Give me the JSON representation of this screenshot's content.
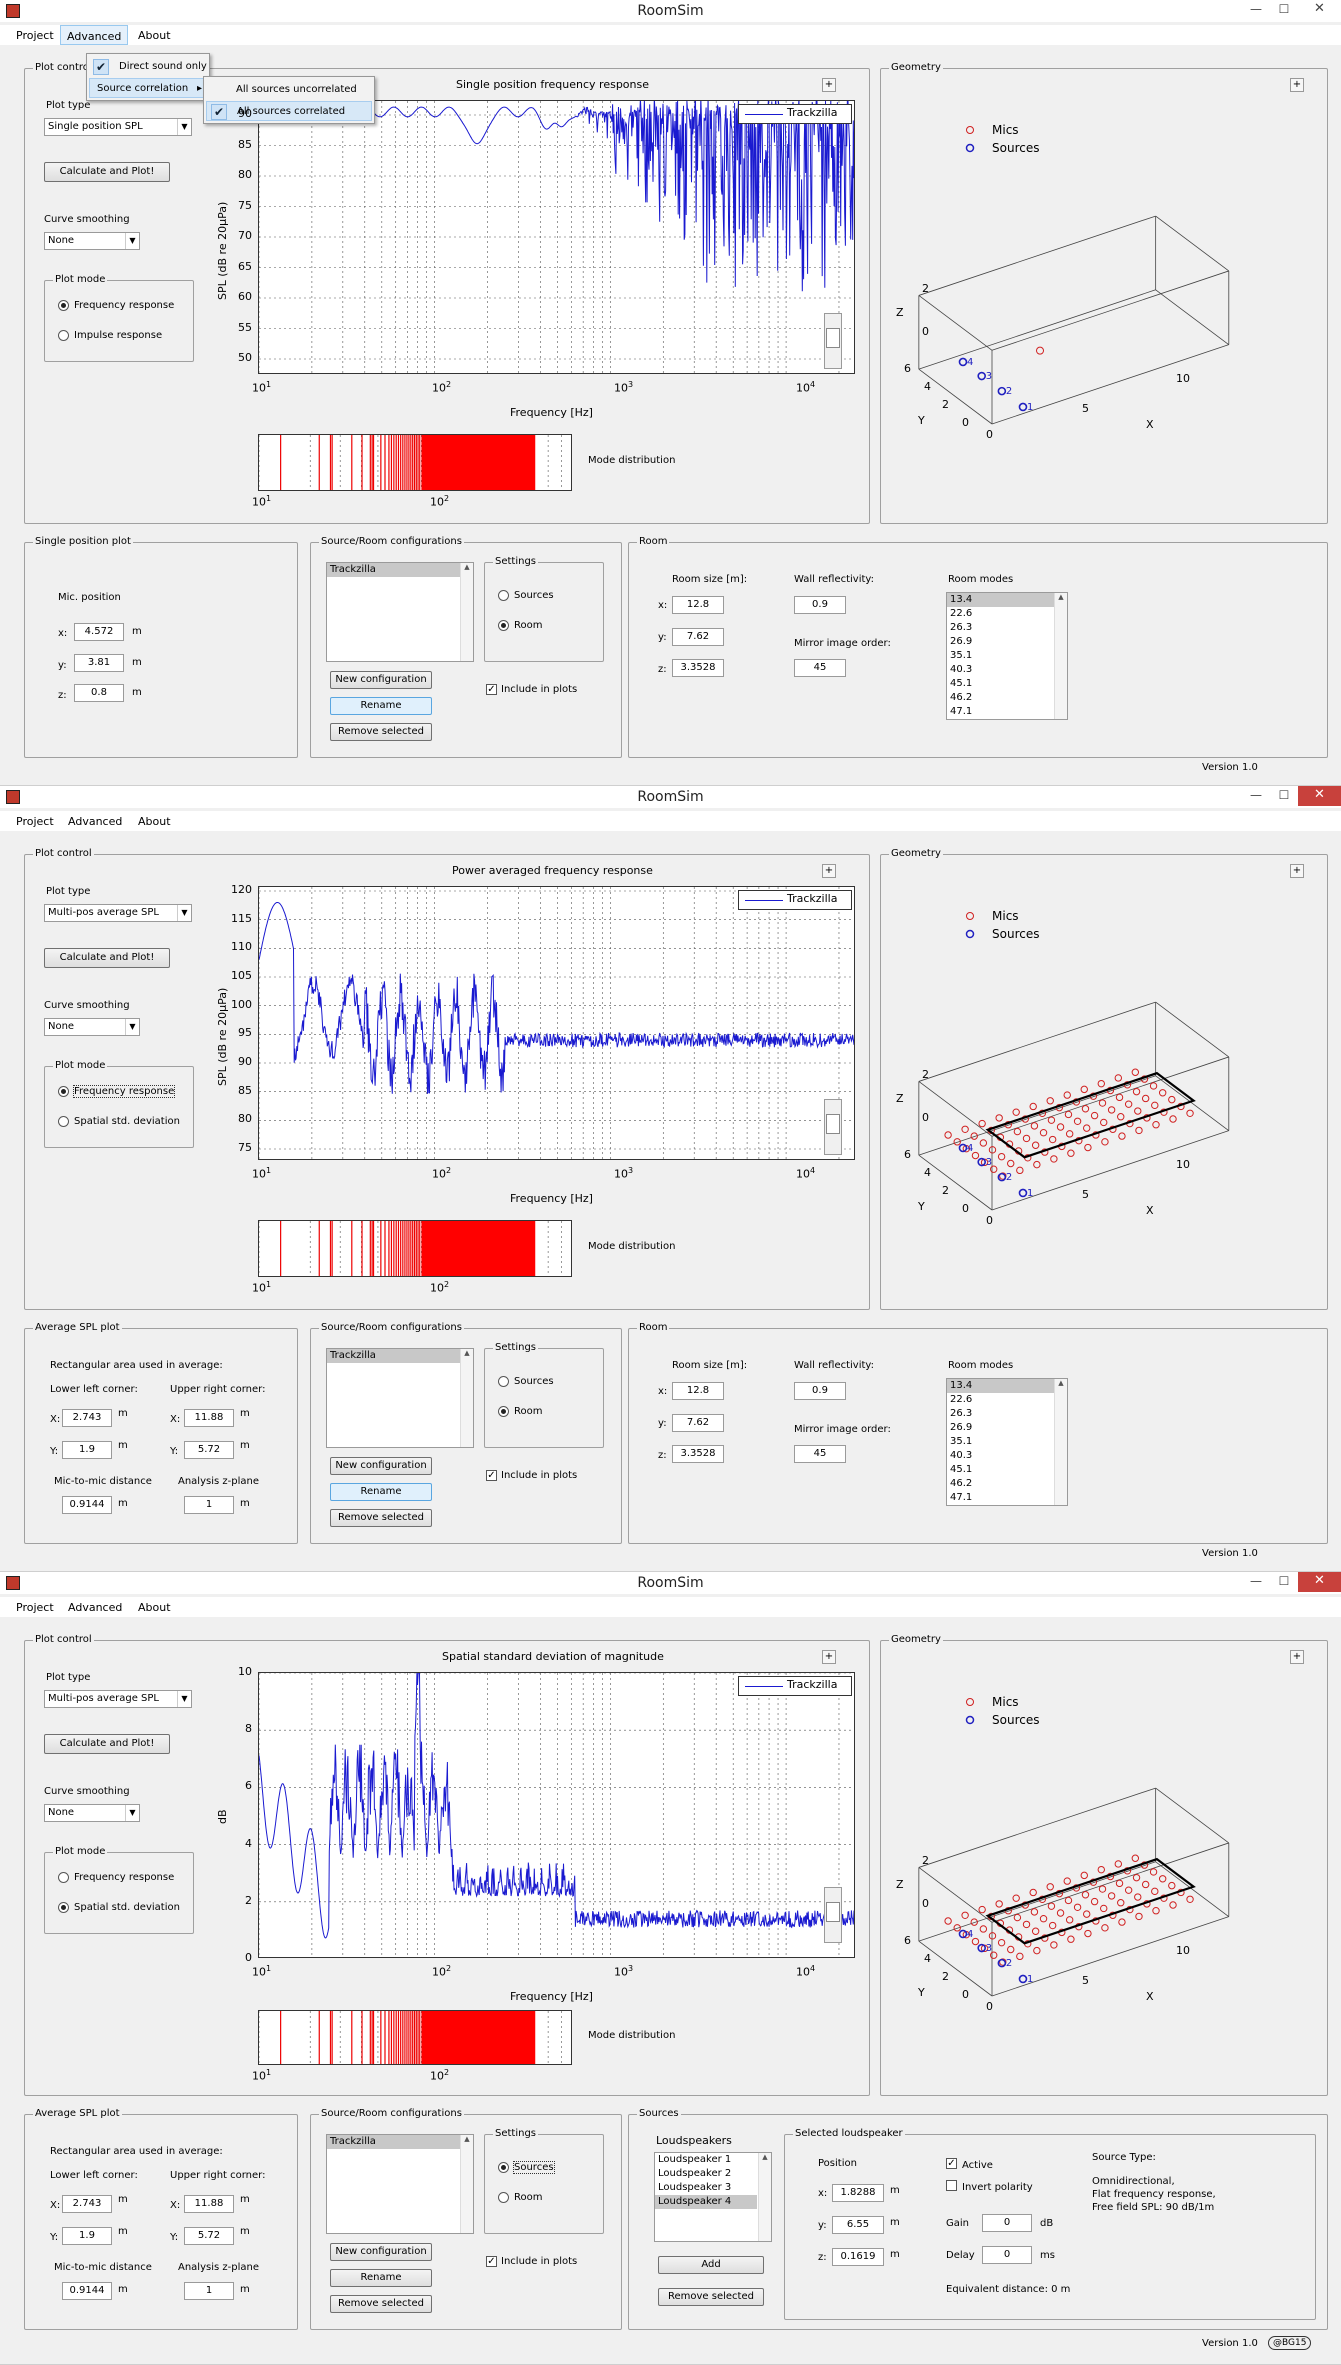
{
  "app_title": "RoomSim",
  "menu": {
    "project": "Project",
    "advanced": "Advanced",
    "about": "About"
  },
  "window_controls": {
    "minimize": "—",
    "maximize": "☐",
    "close": "✕"
  },
  "context_menu": {
    "direct_sound_only": "Direct sound only",
    "source_correlation": "Source correlation",
    "all_uncorrelated": "All sources uncorrelated",
    "all_correlated": "All sources correlated"
  },
  "common": {
    "plot_control": "Plot control",
    "plot_type": "Plot type",
    "calculate": "Calculate and Plot!",
    "curve_smoothing": "Curve smoothing",
    "smoothing_value": "None",
    "plot_mode": "Plot mode",
    "frequency_response": "Frequency response",
    "impulse_response": "Impulse response",
    "spatial_std": "Spatial std. deviation",
    "geometry": "Geometry",
    "legend_series": "Trackzilla",
    "mics": "Mics",
    "sources": "Sources",
    "x_axis": "Frequency [Hz]",
    "mode_distribution": "Mode distribution",
    "source_room_configs": "Source/Room configurations",
    "config_item": "Trackzilla",
    "settings": "Settings",
    "settings_sources": "Sources",
    "settings_room": "Room",
    "new_config": "New configuration",
    "rename": "Rename",
    "remove_selected": "Remove selected",
    "include_in_plots": "Include in plots",
    "room": "Room",
    "room_size": "Room size [m]:",
    "wall_reflectivity": "Wall reflectivity:",
    "wall_reflectivity_value": "0.9",
    "mirror_order": "Mirror image order:",
    "mirror_order_value": "45",
    "room_modes": "Room modes",
    "room_x": "12.8",
    "room_y": "7.62",
    "room_z": "3.3528",
    "version": "Version 1.0",
    "plus": "+",
    "unit_m": "m",
    "axis_x": "X",
    "axis_y": "Y",
    "axis_z": "Z",
    "x_label": "x:",
    "y_label": "y:",
    "z_label": "z:",
    "X_label": "X:",
    "Y_label": "Y:"
  },
  "room_modes": [
    "13.4",
    "22.6",
    "26.3",
    "26.9",
    "35.1",
    "40.3",
    "45.1",
    "46.2",
    "47.1"
  ],
  "geom_ticks": {
    "z0": "0",
    "z2": "2",
    "y0": "0",
    "y2": "2",
    "y4": "4",
    "y6": "6",
    "x0": "0",
    "x5": "5",
    "x10": "10",
    "src1": "1",
    "src2": "2",
    "src3": "3",
    "src4": "4"
  },
  "freq_ticks": {
    "t10": "10",
    "t100": "10",
    "t1k": "10",
    "t10k": "10",
    "e1": "1",
    "e2": "2",
    "e3": "3",
    "e4": "4"
  },
  "windows": [
    {
      "plot_type_value": "Single position SPL",
      "plot_title": "Single position frequency response",
      "y_label": "SPL (dB re 20µPa)",
      "y_ticks": [
        "90",
        "85",
        "80",
        "75",
        "70",
        "65",
        "60",
        "55",
        "50"
      ],
      "left_panel": {
        "title": "Single position plot",
        "mic_position": "Mic. position",
        "x": "4.572",
        "y": "3.81",
        "z": "0.8"
      }
    },
    {
      "plot_type_value": "Multi-pos average SPL",
      "plot_title": "Power averaged frequency response",
      "y_label": "SPL (dB re 20µPa)",
      "y_ticks": [
        "120",
        "115",
        "110",
        "105",
        "100",
        "95",
        "90",
        "85",
        "80",
        "75"
      ],
      "left_panel": {
        "title": "Average SPL plot",
        "rect_area": "Rectangular area used in average:",
        "lower_left": "Lower left corner:",
        "upper_right": "Upper right corner:",
        "ll_x": "2.743",
        "ll_y": "1.9",
        "ur_x": "11.88",
        "ur_y": "5.72",
        "mic_to_mic": "Mic-to-mic distance",
        "mic_to_mic_value": "0.9144",
        "z_plane": "Analysis z-plane",
        "z_plane_value": "1"
      }
    },
    {
      "plot_type_value": "Multi-pos average SPL",
      "plot_title": "Spatial standard deviation of magnitude",
      "y_label": "dB",
      "y_ticks": [
        "10",
        "8",
        "6",
        "4",
        "2",
        "0"
      ],
      "left_panel": {
        "title": "Average SPL plot",
        "rect_area": "Rectangular area used in average:",
        "lower_left": "Lower left corner:",
        "upper_right": "Upper right corner:",
        "ll_x": "2.743",
        "ll_y": "1.9",
        "ur_x": "11.88",
        "ur_y": "5.72",
        "mic_to_mic": "Mic-to-mic distance",
        "mic_to_mic_value": "0.9144",
        "z_plane": "Analysis z-plane",
        "z_plane_value": "1"
      },
      "sources_panel": {
        "title": "Sources",
        "loudspeakers": "Loudspeakers",
        "items": [
          "Loudspeaker 1",
          "Loudspeaker 2",
          "Loudspeaker 3",
          "Loudspeaker 4"
        ],
        "add": "Add",
        "remove_selected": "Remove selected",
        "selected_title": "Selected loudspeaker",
        "position": "Position",
        "x": "1.8288",
        "y": "6.55",
        "z": "0.1619",
        "active": "Active",
        "invert_polarity": "Invert polarity",
        "gain": "Gain",
        "gain_value": "0",
        "gain_unit": "dB",
        "delay": "Delay",
        "delay_value": "0",
        "delay_unit": "ms",
        "equivalent_distance": "Equivalent distance: 0 m",
        "source_type": "Source Type:",
        "source_type_desc1": "Omnidirectional,",
        "source_type_desc2": "Flat frequency response,",
        "source_type_desc3": "Free field SPL: 90 dB/1m"
      },
      "badge": "@BG15"
    }
  ]
}
